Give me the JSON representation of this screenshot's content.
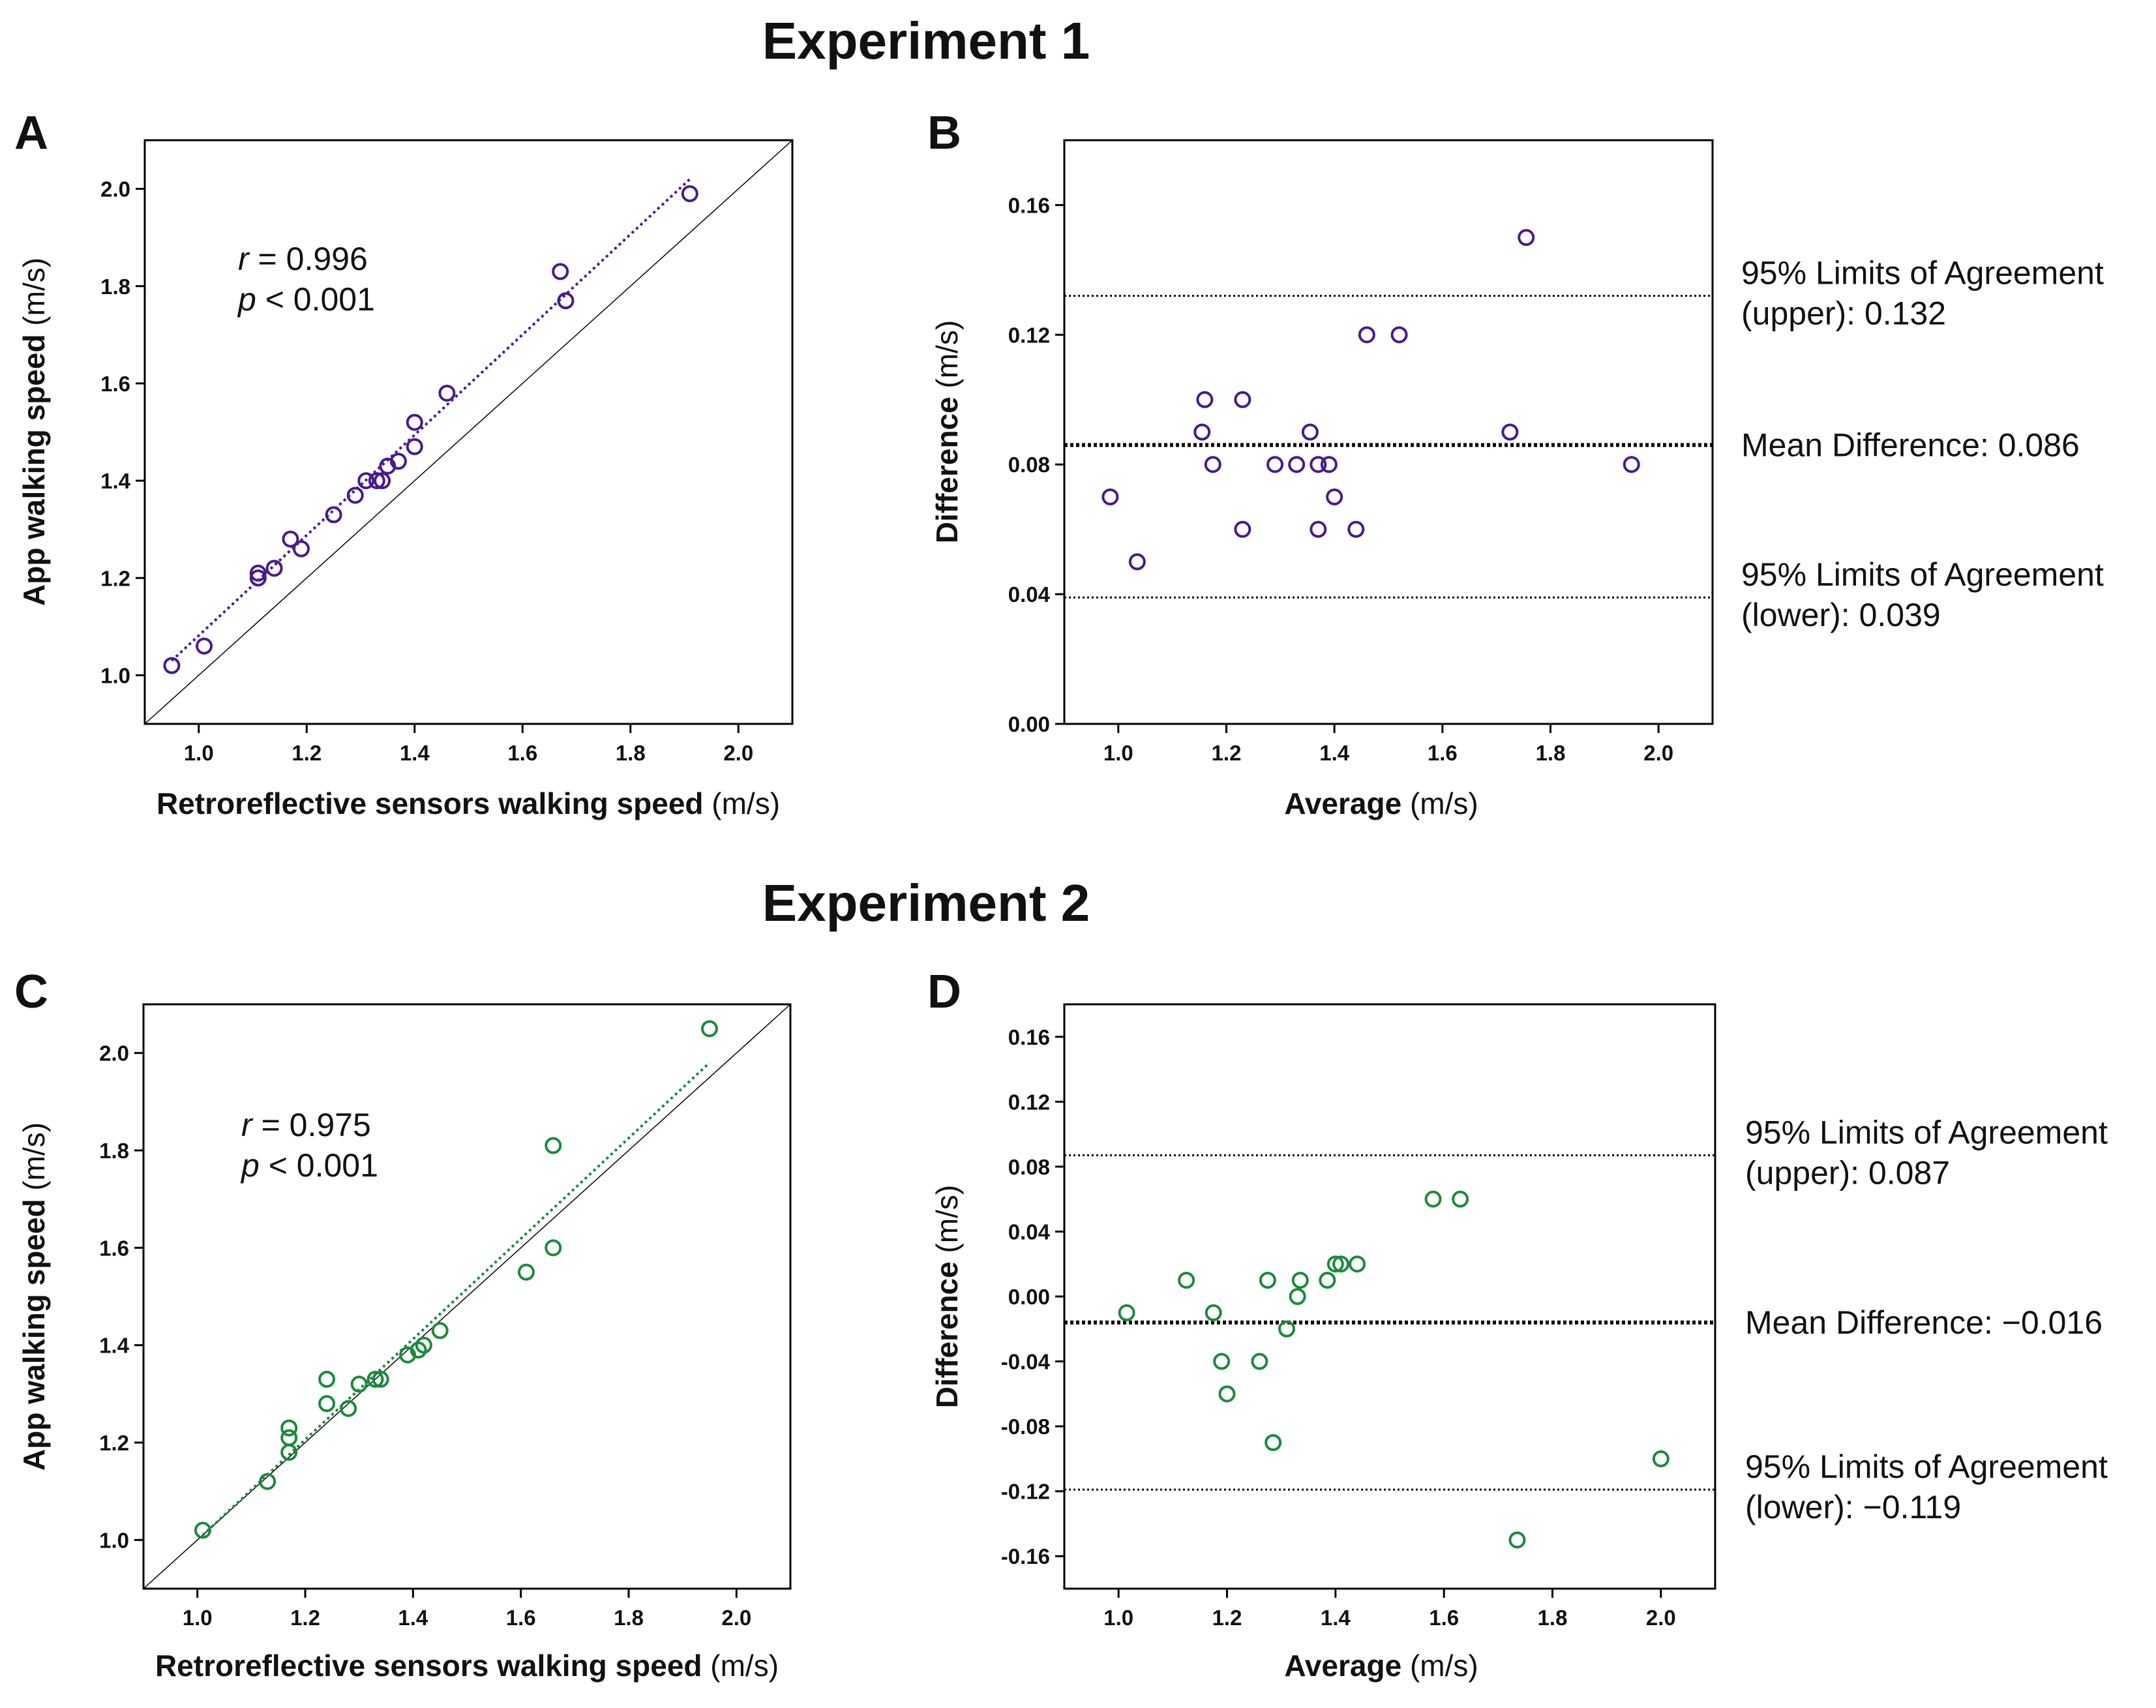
{
  "colors": {
    "experiment1": "#4a1a8c",
    "experiment2": "#1b8a3c",
    "axis": "#000000"
  },
  "experiments": [
    {
      "title": "Experiment 1"
    },
    {
      "title": "Experiment 2"
    }
  ],
  "chart_data": [
    {
      "panel": "A",
      "type": "scatter",
      "experiment": 1,
      "xlabel_bold": "Retroreflective sensors walking speed",
      "xlabel_unit": "(m/s)",
      "ylabel_bold": "App walking speed",
      "ylabel_unit": "(m/s)",
      "xlim": [
        0.9,
        2.1
      ],
      "ylim": [
        0.9,
        2.1
      ],
      "xticks": [
        "1.0",
        "1.2",
        "1.4",
        "1.6",
        "1.8",
        "2.0"
      ],
      "yticks": [
        "1.0",
        "1.2",
        "1.4",
        "1.6",
        "1.8",
        "2.0"
      ],
      "stat_r_symbol": "r",
      "stat_r_value": " = 0.996",
      "stat_p_symbol": "p",
      "stat_p_value": " < 0.001",
      "identity_line": true,
      "regression_line": {
        "x": [
          0.95,
          1.91
        ],
        "y": [
          1.03,
          2.02
        ]
      },
      "points": [
        [
          0.95,
          1.02
        ],
        [
          1.01,
          1.06
        ],
        [
          1.11,
          1.2
        ],
        [
          1.11,
          1.21
        ],
        [
          1.14,
          1.22
        ],
        [
          1.17,
          1.28
        ],
        [
          1.19,
          1.26
        ],
        [
          1.25,
          1.33
        ],
        [
          1.29,
          1.37
        ],
        [
          1.31,
          1.4
        ],
        [
          1.33,
          1.4
        ],
        [
          1.34,
          1.4
        ],
        [
          1.35,
          1.43
        ],
        [
          1.37,
          1.44
        ],
        [
          1.4,
          1.47
        ],
        [
          1.4,
          1.52
        ],
        [
          1.46,
          1.58
        ],
        [
          1.67,
          1.83
        ],
        [
          1.68,
          1.77
        ],
        [
          1.91,
          1.99
        ]
      ]
    },
    {
      "panel": "B",
      "type": "scatter",
      "experiment": 1,
      "xlabel_bold": "Average",
      "xlabel_unit": "(m/s)",
      "ylabel_bold": "Difference",
      "ylabel_unit": "(m/s)",
      "xlim": [
        0.9,
        2.1
      ],
      "ylim": [
        0.0,
        0.18
      ],
      "xticks": [
        "1.0",
        "1.2",
        "1.4",
        "1.6",
        "1.8",
        "2.0"
      ],
      "yticks": [
        "0.00",
        "0.04",
        "0.08",
        "0.12",
        "0.16"
      ],
      "mean_difference": 0.086,
      "upper_loa": 0.132,
      "lower_loa": 0.039,
      "upper_label_1": "95% Limits of Agreement",
      "upper_label_2": "(upper): 0.132",
      "mean_label": "Mean Difference: 0.086",
      "lower_label_1": "95% Limits of Agreement",
      "lower_label_2": "(lower): 0.039",
      "points": [
        [
          0.985,
          0.07
        ],
        [
          1.035,
          0.05
        ],
        [
          1.155,
          0.09
        ],
        [
          1.16,
          0.1
        ],
        [
          1.175,
          0.08
        ],
        [
          1.23,
          0.1
        ],
        [
          1.23,
          0.06
        ],
        [
          1.29,
          0.08
        ],
        [
          1.33,
          0.08
        ],
        [
          1.355,
          0.09
        ],
        [
          1.37,
          0.06
        ],
        [
          1.37,
          0.08
        ],
        [
          1.39,
          0.08
        ],
        [
          1.4,
          0.07
        ],
        [
          1.44,
          0.06
        ],
        [
          1.46,
          0.12
        ],
        [
          1.52,
          0.12
        ],
        [
          1.725,
          0.09
        ],
        [
          1.755,
          0.15
        ],
        [
          1.95,
          0.08
        ]
      ]
    },
    {
      "panel": "C",
      "type": "scatter",
      "experiment": 2,
      "xlabel_bold": "Retroreflective sensors walking speed",
      "xlabel_unit": "(m/s)",
      "ylabel_bold": "App walking speed",
      "ylabel_unit": "(m/s)",
      "xlim": [
        0.9,
        2.1
      ],
      "ylim": [
        0.9,
        2.1
      ],
      "xticks": [
        "1.0",
        "1.2",
        "1.4",
        "1.6",
        "1.8",
        "2.0"
      ],
      "yticks": [
        "1.0",
        "1.2",
        "1.4",
        "1.6",
        "1.8",
        "2.0"
      ],
      "stat_r_symbol": "r",
      "stat_r_value": " = 0.975",
      "stat_p_symbol": "p",
      "stat_p_value": " < 0.001",
      "identity_line": true,
      "regression_line": {
        "x": [
          1.01,
          1.95
        ],
        "y": [
          1.01,
          1.98
        ]
      },
      "points": [
        [
          1.01,
          1.02
        ],
        [
          1.13,
          1.12
        ],
        [
          1.17,
          1.18
        ],
        [
          1.17,
          1.21
        ],
        [
          1.17,
          1.23
        ],
        [
          1.24,
          1.28
        ],
        [
          1.24,
          1.33
        ],
        [
          1.28,
          1.27
        ],
        [
          1.3,
          1.32
        ],
        [
          1.33,
          1.33
        ],
        [
          1.34,
          1.33
        ],
        [
          1.39,
          1.38
        ],
        [
          1.41,
          1.39
        ],
        [
          1.42,
          1.4
        ],
        [
          1.45,
          1.43
        ],
        [
          1.61,
          1.55
        ],
        [
          1.66,
          1.6
        ],
        [
          1.66,
          1.81
        ],
        [
          1.95,
          2.05
        ]
      ]
    },
    {
      "panel": "D",
      "type": "scatter",
      "experiment": 2,
      "xlabel_bold": "Average",
      "xlabel_unit": "(m/s)",
      "ylabel_bold": "Difference",
      "ylabel_unit": "(m/s)",
      "xlim": [
        0.9,
        2.1
      ],
      "ylim": [
        -0.18,
        0.18
      ],
      "xticks": [
        "1.0",
        "1.2",
        "1.4",
        "1.6",
        "1.8",
        "2.0"
      ],
      "yticks": [
        "-0.16",
        "-0.12",
        "-0.08",
        "-0.04",
        "0.00",
        "0.04",
        "0.08",
        "0.12",
        "0.16"
      ],
      "mean_difference": -0.016,
      "upper_loa": 0.087,
      "lower_loa": -0.119,
      "upper_label_1": "95% Limits of Agreement",
      "upper_label_2": "(upper): 0.087",
      "mean_label": "Mean Difference: −0.016",
      "lower_label_1": "95% Limits of Agreement",
      "lower_label_2": "(lower): −0.119",
      "points": [
        [
          1.015,
          -0.01
        ],
        [
          1.125,
          0.01
        ],
        [
          1.175,
          -0.01
        ],
        [
          1.19,
          -0.04
        ],
        [
          1.2,
          -0.06
        ],
        [
          1.26,
          -0.04
        ],
        [
          1.275,
          0.01
        ],
        [
          1.285,
          -0.09
        ],
        [
          1.31,
          -0.02
        ],
        [
          1.33,
          0.0
        ],
        [
          1.335,
          0.01
        ],
        [
          1.385,
          0.01
        ],
        [
          1.4,
          0.02
        ],
        [
          1.41,
          0.02
        ],
        [
          1.44,
          0.02
        ],
        [
          1.58,
          0.06
        ],
        [
          1.63,
          0.06
        ],
        [
          1.735,
          -0.15
        ],
        [
          2.0,
          -0.1
        ]
      ]
    }
  ]
}
